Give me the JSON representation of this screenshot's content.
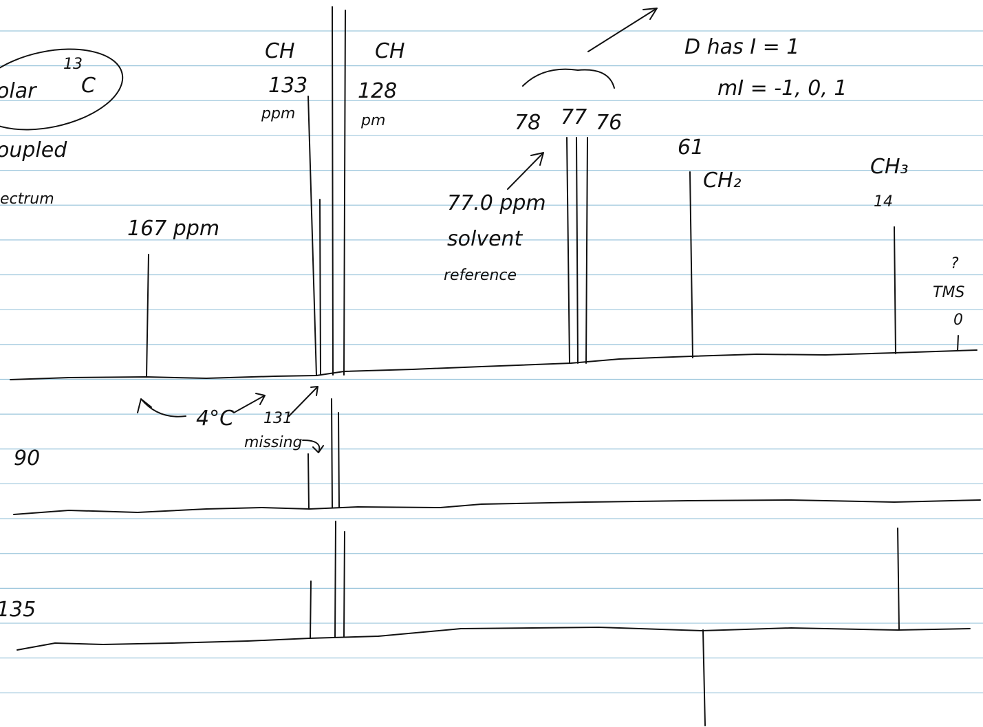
{
  "labels": [
    "CH",
    "133",
    "ppm",
    "CH",
    "128",
    "pm",
    "78",
    "77",
    "76",
    "D has I = 1",
    "mI = -1, 0, 1",
    "61",
    "CH₂",
    "CH₃",
    "14",
    "167 ppm",
    "77.0 ppm",
    "solvent",
    "reference",
    "?",
    "TMS",
    "0",
    "4°C",
    "131",
    "missing",
    "90",
    "135",
    "olar",
    "13",
    "C",
    "oupled",
    "ectrum"
  ]
}
